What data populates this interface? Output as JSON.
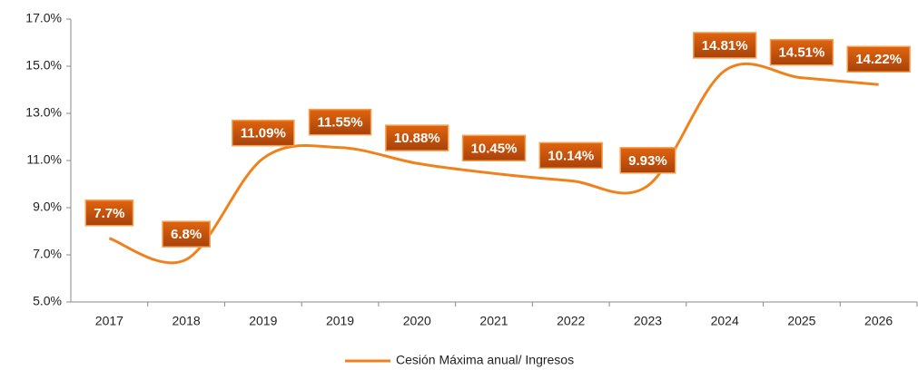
{
  "chart_data": {
    "type": "line",
    "categories": [
      "2017",
      "2018",
      "2019",
      "2019",
      "2020",
      "2021",
      "2022",
      "2023",
      "2024",
      "2025",
      "2026"
    ],
    "series": [
      {
        "name": "Cesión Máxima anual/ Ingresos",
        "color": "#f0821e",
        "values": [
          7.7,
          6.8,
          11.09,
          11.55,
          10.88,
          10.45,
          10.14,
          9.93,
          14.81,
          14.51,
          14.22
        ],
        "value_labels": [
          "7.7%",
          "6.8%",
          "11.09%",
          "11.55%",
          "10.88%",
          "10.45%",
          "10.14%",
          "9.93%",
          "14.81%",
          "14.51%",
          "14.22%"
        ]
      }
    ],
    "ylim": [
      5,
      17
    ],
    "yticks": [
      {
        "value": 5,
        "label": "5.0%"
      },
      {
        "value": 7,
        "label": "7.0%"
      },
      {
        "value": 9,
        "label": "9.0%"
      },
      {
        "value": 11,
        "label": "11.0%"
      },
      {
        "value": 13,
        "label": "13.0%"
      },
      {
        "value": 15,
        "label": "15.0%"
      },
      {
        "value": 17,
        "label": "17.0%"
      }
    ],
    "grid": false,
    "smooth": true,
    "legend": "bottom"
  }
}
